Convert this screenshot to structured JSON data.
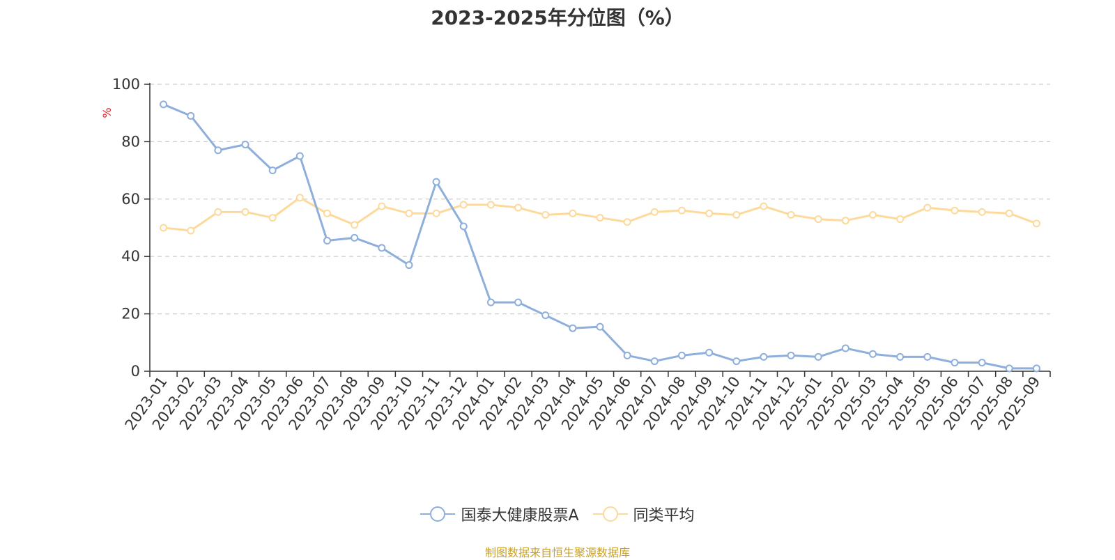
{
  "chart_data": {
    "type": "line",
    "title": "2023-2025年分位图（%）",
    "ylabel": "%",
    "xlabel": "",
    "ylim": [
      0,
      100
    ],
    "yticks": [
      0,
      20,
      40,
      60,
      80,
      100
    ],
    "grid": true,
    "legend_position": "bottom",
    "categories": [
      "2023-01",
      "2023-02",
      "2023-03",
      "2023-04",
      "2023-05",
      "2023-06",
      "2023-07",
      "2023-08",
      "2023-09",
      "2023-10",
      "2023-11",
      "2023-12",
      "2024-01",
      "2024-02",
      "2024-03",
      "2024-04",
      "2024-05",
      "2024-06",
      "2024-07",
      "2024-08",
      "2024-09",
      "2024-10",
      "2024-11",
      "2024-12",
      "2025-01",
      "2025-02",
      "2025-03",
      "2025-04",
      "2025-05",
      "2025-06",
      "2025-07",
      "2025-08",
      "2025-09"
    ],
    "series": [
      {
        "name": "国泰大健康股票A",
        "color": "#8eaedb",
        "values": [
          93,
          89,
          77,
          79,
          70,
          75,
          45.5,
          46.5,
          43,
          37,
          66,
          50.5,
          24,
          24,
          19.5,
          15,
          15.5,
          5.5,
          3.5,
          5.5,
          6.5,
          3.5,
          5,
          5.5,
          5,
          8,
          6,
          5,
          5,
          3,
          3,
          1,
          1
        ]
      },
      {
        "name": "同类平均",
        "color": "#fdd99b",
        "values": [
          50,
          49,
          55.5,
          55.5,
          53.5,
          60.5,
          55,
          51,
          57.5,
          55,
          55,
          58,
          58,
          57,
          54.5,
          55,
          53.5,
          52,
          55.5,
          56,
          55,
          54.5,
          57.5,
          54.5,
          53,
          52.5,
          54.5,
          53,
          57,
          56,
          55.5,
          55,
          51.5
        ]
      }
    ]
  },
  "source_text": "制图数据来自恒生聚源数据库"
}
